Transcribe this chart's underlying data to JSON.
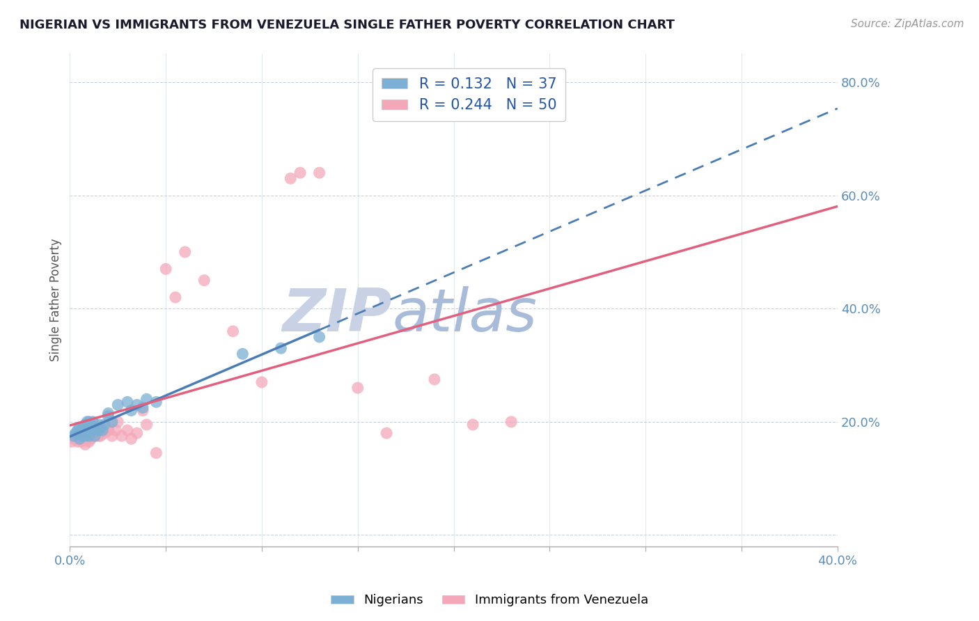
{
  "title": "NIGERIAN VS IMMIGRANTS FROM VENEZUELA SINGLE FATHER POVERTY CORRELATION CHART",
  "source": "Source: ZipAtlas.com",
  "ylabel": "Single Father Poverty",
  "xlim": [
    0.0,
    0.4
  ],
  "ylim": [
    -0.02,
    0.85
  ],
  "yticks": [
    0.0,
    0.2,
    0.4,
    0.6,
    0.8
  ],
  "ytick_labels": [
    "",
    "20.0%",
    "40.0%",
    "60.0%",
    "80.0%"
  ],
  "xticks": [
    0.0,
    0.05,
    0.1,
    0.15,
    0.2,
    0.25,
    0.3,
    0.35,
    0.4
  ],
  "xtick_labels": [
    "0.0%",
    "",
    "",
    "",
    "",
    "",
    "",
    "",
    "40.0%"
  ],
  "nigerian_R": 0.132,
  "nigerian_N": 37,
  "venezuela_R": 0.244,
  "venezuela_N": 50,
  "blue_color": "#7BAFD4",
  "pink_color": "#F4A7B9",
  "blue_line_color": "#4A7DB5",
  "pink_line_color": "#E0607E",
  "watermark_zip_color": "#C5CDE0",
  "watermark_atlas_color": "#A8BAD8",
  "background_color": "#FFFFFF",
  "nigerian_x": [
    0.002,
    0.003,
    0.004,
    0.005,
    0.005,
    0.006,
    0.007,
    0.007,
    0.008,
    0.008,
    0.009,
    0.009,
    0.01,
    0.01,
    0.01,
    0.012,
    0.012,
    0.013,
    0.014,
    0.015,
    0.015,
    0.016,
    0.017,
    0.018,
    0.02,
    0.02,
    0.022,
    0.025,
    0.03,
    0.032,
    0.035,
    0.038,
    0.04,
    0.045,
    0.09,
    0.11,
    0.13
  ],
  "nigerian_y": [
    0.175,
    0.18,
    0.185,
    0.17,
    0.19,
    0.175,
    0.185,
    0.19,
    0.175,
    0.195,
    0.18,
    0.2,
    0.175,
    0.185,
    0.2,
    0.185,
    0.2,
    0.175,
    0.19,
    0.185,
    0.195,
    0.19,
    0.185,
    0.195,
    0.21,
    0.215,
    0.2,
    0.23,
    0.235,
    0.22,
    0.23,
    0.225,
    0.24,
    0.235,
    0.32,
    0.33,
    0.35
  ],
  "venezuela_x": [
    0.001,
    0.002,
    0.003,
    0.004,
    0.005,
    0.005,
    0.006,
    0.006,
    0.007,
    0.008,
    0.008,
    0.009,
    0.009,
    0.01,
    0.01,
    0.011,
    0.012,
    0.012,
    0.013,
    0.015,
    0.015,
    0.016,
    0.017,
    0.018,
    0.02,
    0.02,
    0.022,
    0.024,
    0.025,
    0.027,
    0.03,
    0.032,
    0.035,
    0.038,
    0.04,
    0.045,
    0.05,
    0.055,
    0.06,
    0.07,
    0.085,
    0.1,
    0.115,
    0.12,
    0.13,
    0.15,
    0.165,
    0.19,
    0.21,
    0.23
  ],
  "venezuela_y": [
    0.165,
    0.17,
    0.175,
    0.165,
    0.17,
    0.18,
    0.165,
    0.185,
    0.175,
    0.16,
    0.185,
    0.17,
    0.19,
    0.165,
    0.18,
    0.17,
    0.18,
    0.19,
    0.175,
    0.175,
    0.19,
    0.175,
    0.185,
    0.18,
    0.185,
    0.19,
    0.175,
    0.185,
    0.2,
    0.175,
    0.185,
    0.17,
    0.18,
    0.22,
    0.195,
    0.145,
    0.47,
    0.42,
    0.5,
    0.45,
    0.36,
    0.27,
    0.63,
    0.64,
    0.64,
    0.26,
    0.18,
    0.275,
    0.195,
    0.2
  ],
  "legend_R_label": "R = ",
  "legend_N_label": "N = "
}
